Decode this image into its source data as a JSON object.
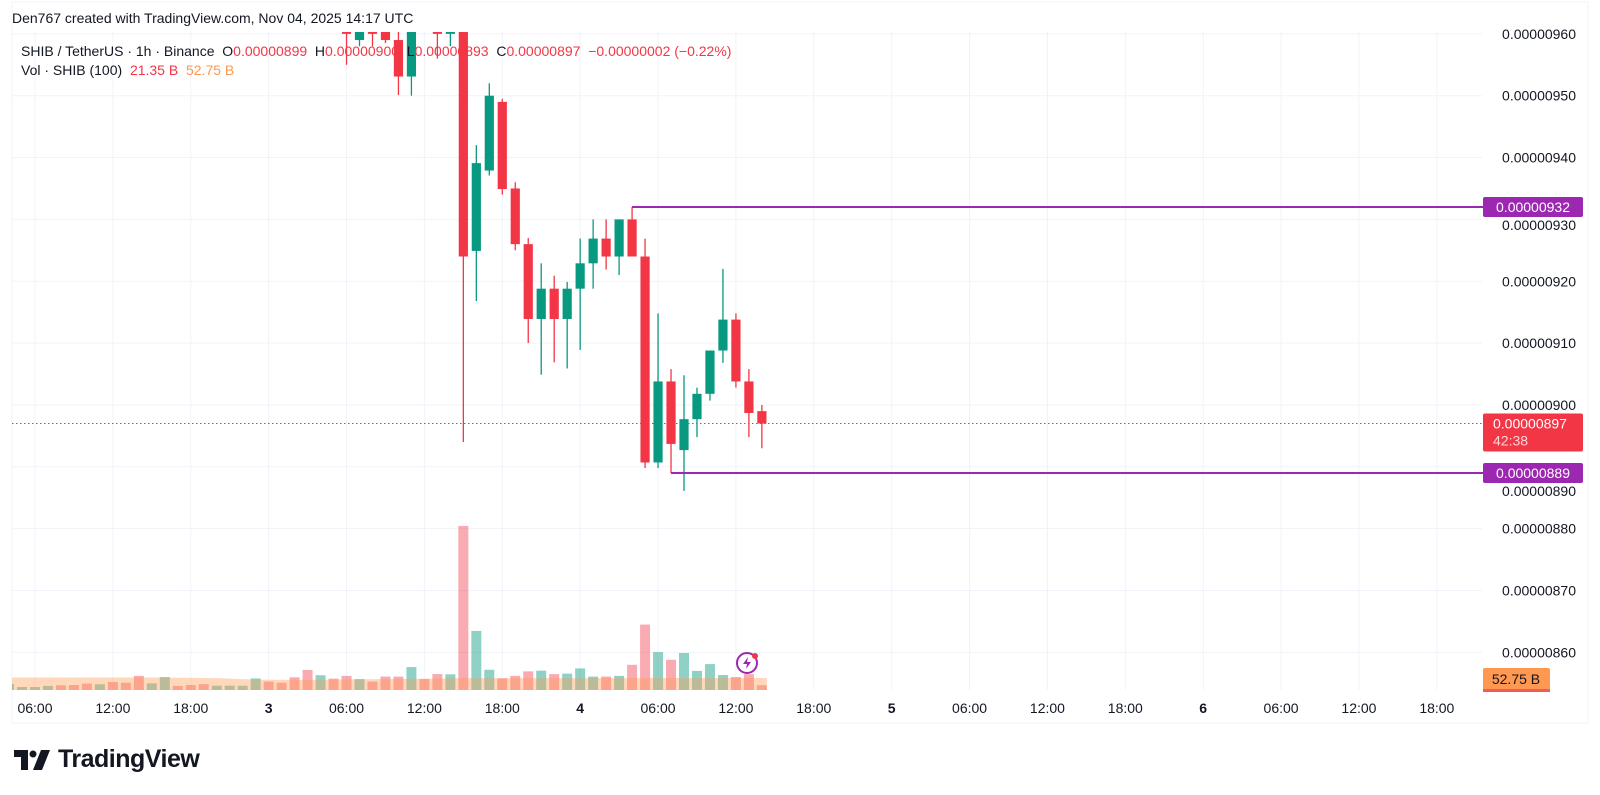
{
  "header": {
    "created": "Den767 created with TradingView.com, Nov 04, 2025 14:17 UTC"
  },
  "legend": {
    "symbol": "SHIB / TetherUS · 1h · Binance",
    "o_label": "O",
    "o_value": "0.00000899",
    "h_label": "H",
    "h_value": "0.00000900",
    "l_label": "L",
    "l_value": "0.00000893",
    "c_label": "C",
    "c_value": "0.00000897",
    "change": "−0.00000002 (−0.22%)",
    "vol_label": "Vol · SHIB (100)",
    "vol_value": "21.35 B",
    "vol_ma_value": "52.75 B"
  },
  "logo": {
    "text": "TradingView"
  },
  "chart_data": {
    "type": "candlestick",
    "price_axis": {
      "ticks": [
        "0.00000960",
        "0.00000950",
        "0.00000940",
        "0.00000930",
        "0.00000920",
        "0.00000910",
        "0.00000900",
        "0.00000890",
        "0.00000880",
        "0.00000870",
        "0.00000860"
      ],
      "ylim": [
        8.55e-06,
        9.6e-06
      ]
    },
    "time_axis": {
      "ticks": [
        {
          "label": "06:00",
          "day": false
        },
        {
          "label": "12:00",
          "day": false
        },
        {
          "label": "18:00",
          "day": false
        },
        {
          "label": "3",
          "day": true
        },
        {
          "label": "06:00",
          "day": false
        },
        {
          "label": "12:00",
          "day": false
        },
        {
          "label": "18:00",
          "day": false
        },
        {
          "label": "4",
          "day": true
        },
        {
          "label": "06:00",
          "day": false
        },
        {
          "label": "12:00",
          "day": false
        },
        {
          "label": "18:00",
          "day": false
        },
        {
          "label": "5",
          "day": true
        },
        {
          "label": "06:00",
          "day": false
        },
        {
          "label": "12:00",
          "day": false
        },
        {
          "label": "18:00",
          "day": false
        },
        {
          "label": "6",
          "day": true
        },
        {
          "label": "06:00",
          "day": false
        },
        {
          "label": "12:00",
          "day": false
        },
        {
          "label": "18:00",
          "day": false
        }
      ]
    },
    "colors": {
      "up": "#089981",
      "down": "#f23645",
      "level_line": "#9c27b0",
      "volume_ma": "#ff9850",
      "grid": "#f0f3fa"
    },
    "candles": [
      [
        "Nov 03 06:00",
        9.61e-06,
        9.64e-06,
        9.55e-06,
        9.6e-06
      ],
      [
        "Nov 03 07:00",
        9.59e-06,
        9.63e-06,
        9.58e-06,
        9.61e-06
      ],
      [
        "Nov 03 08:00",
        9.62e-06,
        9.64e-06,
        9.58e-06,
        9.6e-06
      ],
      [
        "Nov 03 09:00",
        9.603e-06,
        9.62e-06,
        9.585e-06,
        9.59e-06
      ],
      [
        "Nov 03 10:00",
        9.59e-06,
        9.61e-06,
        9.501e-06,
        9.531e-06
      ],
      [
        "Nov 03 11:00",
        9.531e-06,
        9.62e-06,
        9.5e-06,
        9.61e-06
      ],
      [
        "Nov 03 12:00",
        9.63e-06,
        9.66e-06,
        9.605e-06,
        9.61e-06
      ],
      [
        "Nov 03 13:00",
        9.61e-06,
        9.63e-06,
        9.56e-06,
        9.6e-06
      ],
      [
        "Nov 03 14:00",
        9.6e-06,
        9.64e-06,
        9.58e-06,
        9.62e-06
      ],
      [
        "Nov 03 15:00",
        9.62e-06,
        9.63e-06,
        8.94e-06,
        9.24e-06
      ],
      [
        "Nov 03 16:00",
        9.249e-06,
        9.42e-06,
        9.168e-06,
        9.391e-06
      ],
      [
        "Nov 03 17:00",
        9.379e-06,
        9.52e-06,
        9.371e-06,
        9.5e-06
      ],
      [
        "Nov 03 18:00",
        9.49e-06,
        9.495e-06,
        9.34e-06,
        9.349e-06
      ],
      [
        "Nov 03 19:00",
        9.35e-06,
        9.36e-06,
        9.25e-06,
        9.26e-06
      ],
      [
        "Nov 03 20:00",
        9.26e-06,
        9.27e-06,
        9.1e-06,
        9.139e-06
      ],
      [
        "Nov 03 21:00",
        9.139e-06,
        9.229e-06,
        9.049e-06,
        9.188e-06
      ],
      [
        "Nov 03 22:00",
        9.188e-06,
        9.209e-06,
        9.069e-06,
        9.139e-06
      ],
      [
        "Nov 03 23:00",
        9.139e-06,
        9.199e-06,
        9.059e-06,
        9.188e-06
      ],
      [
        "Nov 04 00:00",
        9.188e-06,
        9.269e-06,
        9.089e-06,
        9.229e-06
      ],
      [
        "Nov 04 01:00",
        9.229e-06,
        9.3e-06,
        9.188e-06,
        9.269e-06
      ],
      [
        "Nov 04 02:00",
        9.269e-06,
        9.3e-06,
        9.219e-06,
        9.24e-06
      ],
      [
        "Nov 04 03:00",
        9.24e-06,
        9.3e-06,
        9.21e-06,
        9.3e-06
      ],
      [
        "Nov 04 04:00",
        9.3e-06,
        9.32e-06,
        9.24e-06,
        9.24e-06
      ],
      [
        "Nov 04 05:00",
        9.24e-06,
        9.269e-06,
        8.898e-06,
        8.907e-06
      ],
      [
        "Nov 04 06:00",
        8.907e-06,
        9.148e-06,
        8.898e-06,
        9.038e-06
      ],
      [
        "Nov 04 07:00",
        9.038e-06,
        9.058e-06,
        8.89e-06,
        8.937e-06
      ],
      [
        "Nov 04 08:00",
        8.927e-06,
        9.048e-06,
        8.861e-06,
        8.977e-06
      ],
      [
        "Nov 04 09:00",
        8.977e-06,
        9.028e-06,
        8.948e-06,
        9.018e-06
      ],
      [
        "Nov 04 10:00",
        9.018e-06,
        9.088e-06,
        9.007e-06,
        9.088e-06
      ],
      [
        "Nov 04 11:00",
        9.088e-06,
        9.22e-06,
        9.068e-06,
        9.138e-06
      ],
      [
        "Nov 04 12:00",
        9.138e-06,
        9.148e-06,
        9.028e-06,
        9.038e-06
      ],
      [
        "Nov 04 13:00",
        9.038e-06,
        9.058e-06,
        8.948e-06,
        8.987e-06
      ],
      [
        "Nov 04 14:00",
        8.99e-06,
        9e-06,
        8.93e-06,
        8.97e-06
      ]
    ],
    "volume": {
      "unit": "B",
      "times": [
        "Nov 02 04:00",
        "Nov 02 05:00",
        "Nov 02 06:00",
        "Nov 02 07:00",
        "Nov 02 08:00",
        "Nov 02 09:00",
        "Nov 02 10:00",
        "Nov 02 11:00",
        "Nov 02 12:00",
        "Nov 02 13:00",
        "Nov 02 14:00",
        "Nov 02 15:00",
        "Nov 02 16:00",
        "Nov 02 17:00",
        "Nov 02 18:00",
        "Nov 02 19:00",
        "Nov 02 20:00",
        "Nov 02 21:00",
        "Nov 02 22:00",
        "Nov 02 23:00",
        "Nov 03 00:00",
        "Nov 03 01:00",
        "Nov 03 02:00",
        "Nov 03 03:00",
        "Nov 03 04:00",
        "Nov 03 05:00",
        "Nov 03 06:00",
        "Nov 03 07:00",
        "Nov 03 08:00",
        "Nov 03 09:00",
        "Nov 03 10:00",
        "Nov 03 11:00",
        "Nov 03 12:00",
        "Nov 03 13:00",
        "Nov 03 14:00",
        "Nov 03 15:00",
        "Nov 03 16:00",
        "Nov 03 17:00",
        "Nov 03 18:00",
        "Nov 03 19:00",
        "Nov 03 20:00",
        "Nov 03 21:00",
        "Nov 03 22:00",
        "Nov 03 23:00",
        "Nov 04 00:00",
        "Nov 04 01:00",
        "Nov 04 02:00",
        "Nov 04 03:00",
        "Nov 04 04:00",
        "Nov 04 05:00",
        "Nov 04 06:00",
        "Nov 04 07:00",
        "Nov 04 08:00",
        "Nov 04 09:00",
        "Nov 04 10:00",
        "Nov 04 11:00",
        "Nov 04 12:00",
        "Nov 04 13:00",
        "Nov 04 14:00"
      ],
      "values": [
        26,
        13,
        13,
        18,
        21,
        22,
        28,
        25,
        35,
        32,
        62,
        29,
        57,
        18,
        22,
        26,
        19,
        19,
        19,
        51,
        37,
        32,
        56,
        88,
        65,
        50,
        62,
        48,
        37,
        59,
        59,
        101,
        48,
        70,
        69,
        722,
        260,
        89,
        51,
        62,
        82,
        85,
        70,
        72,
        95,
        59,
        59,
        62,
        111,
        288,
        167,
        133,
        163,
        84,
        114,
        66,
        57,
        70,
        21.35
      ],
      "direction": [
        "up",
        "up",
        "up",
        "up",
        "down",
        "down",
        "down",
        "up",
        "down",
        "down",
        "down",
        "up",
        "up",
        "down",
        "down",
        "down",
        "up",
        "up",
        "up",
        "up",
        "down",
        "down",
        "down",
        "down",
        "up",
        "down",
        "down",
        "up",
        "down",
        "down",
        "down",
        "up",
        "down",
        "down",
        "up",
        "down",
        "up",
        "up",
        "down",
        "down",
        "down",
        "up",
        "down",
        "up",
        "up",
        "up",
        "down",
        "up",
        "down",
        "down",
        "up",
        "down",
        "up",
        "up",
        "up",
        "up",
        "down",
        "down",
        "down"
      ],
      "ma": [
        55,
        55,
        55,
        55,
        55,
        55,
        55,
        55,
        55,
        55,
        55,
        55,
        55,
        54,
        54,
        53,
        52,
        50,
        48,
        46,
        45,
        45,
        45,
        45,
        45,
        46,
        47,
        47,
        48,
        48,
        49,
        49,
        50,
        50,
        51,
        52,
        52,
        52,
        52,
        52,
        52,
        52,
        52,
        52,
        52,
        52,
        52,
        52,
        52,
        53,
        53,
        53,
        53,
        53,
        53,
        53,
        53,
        53,
        52.75
      ]
    },
    "levels": [
      {
        "price": "0.00000932",
        "from": "Nov 04 04:00"
      },
      {
        "price": "0.00000889",
        "from": "Nov 04 07:00"
      }
    ],
    "last_price": {
      "price": "0.00000897",
      "countdown": "42:38"
    },
    "volume_ma_label": "52.75 B"
  }
}
